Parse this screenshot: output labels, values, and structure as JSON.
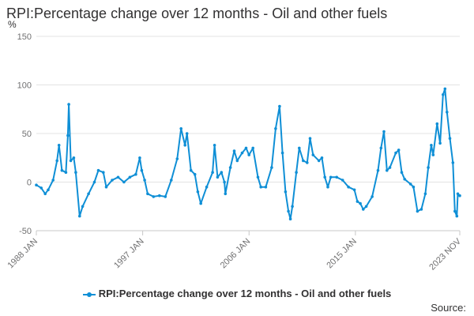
{
  "chart_data": {
    "type": "line",
    "title": "RPI:Percentage change over 12 months - Oil and other fuels",
    "unit_label": "%",
    "ylim": [
      -50,
      150
    ],
    "y_ticks": [
      -50,
      0,
      50,
      100,
      150
    ],
    "x_range": [
      "1988-01",
      "2023-11"
    ],
    "x_tick_labels": [
      {
        "date": "1988-01",
        "label": "1988 JAN"
      },
      {
        "date": "1997-01",
        "label": "1997 JAN"
      },
      {
        "date": "2006-01",
        "label": "2006 JAN"
      },
      {
        "date": "2015-01",
        "label": "2015 JAN"
      },
      {
        "date": "2023-11",
        "label": "2023 NOV"
      }
    ],
    "grid": {
      "horizontal": true,
      "vertical": false
    },
    "legend_position": "bottom",
    "series": [
      {
        "name": "RPI:Percentage change over 12 months - Oil and other fuels",
        "color": "#0f8fd6",
        "points": [
          [
            "1988-01",
            -3
          ],
          [
            "1988-06",
            -6
          ],
          [
            "1988-10",
            -12
          ],
          [
            "1989-01",
            -8
          ],
          [
            "1989-06",
            2
          ],
          [
            "1989-10",
            22
          ],
          [
            "1989-12",
            38
          ],
          [
            "1990-03",
            12
          ],
          [
            "1990-07",
            10
          ],
          [
            "1990-09",
            48
          ],
          [
            "1990-10",
            80
          ],
          [
            "1990-12",
            22
          ],
          [
            "1991-03",
            25
          ],
          [
            "1991-05",
            10
          ],
          [
            "1991-09",
            -35
          ],
          [
            "1991-12",
            -25
          ],
          [
            "1992-06",
            -12
          ],
          [
            "1992-12",
            0
          ],
          [
            "1993-04",
            12
          ],
          [
            "1993-09",
            10
          ],
          [
            "1993-12",
            -5
          ],
          [
            "1994-06",
            2
          ],
          [
            "1994-12",
            5
          ],
          [
            "1995-06",
            0
          ],
          [
            "1995-12",
            5
          ],
          [
            "1996-06",
            8
          ],
          [
            "1996-10",
            25
          ],
          [
            "1996-12",
            12
          ],
          [
            "1997-03",
            2
          ],
          [
            "1997-06",
            -12
          ],
          [
            "1997-12",
            -15
          ],
          [
            "1998-06",
            -14
          ],
          [
            "1998-12",
            -15
          ],
          [
            "1999-06",
            2
          ],
          [
            "1999-12",
            24
          ],
          [
            "2000-04",
            55
          ],
          [
            "2000-08",
            38
          ],
          [
            "2000-10",
            50
          ],
          [
            "2001-02",
            12
          ],
          [
            "2001-06",
            8
          ],
          [
            "2001-09",
            -10
          ],
          [
            "2001-12",
            -22
          ],
          [
            "2002-06",
            -5
          ],
          [
            "2002-12",
            10
          ],
          [
            "2003-02",
            38
          ],
          [
            "2003-05",
            5
          ],
          [
            "2003-09",
            10
          ],
          [
            "2003-12",
            0
          ],
          [
            "2004-01",
            -12
          ],
          [
            "2004-06",
            15
          ],
          [
            "2004-10",
            32
          ],
          [
            "2005-01",
            22
          ],
          [
            "2005-06",
            30
          ],
          [
            "2005-10",
            35
          ],
          [
            "2006-01",
            28
          ],
          [
            "2006-05",
            35
          ],
          [
            "2006-10",
            5
          ],
          [
            "2007-01",
            -5
          ],
          [
            "2007-06",
            -5
          ],
          [
            "2007-12",
            15
          ],
          [
            "2008-04",
            55
          ],
          [
            "2008-08",
            78
          ],
          [
            "2008-11",
            30
          ],
          [
            "2009-02",
            -10
          ],
          [
            "2009-05",
            -30
          ],
          [
            "2009-07",
            -38
          ],
          [
            "2009-09",
            -25
          ],
          [
            "2010-01",
            10
          ],
          [
            "2010-04",
            35
          ],
          [
            "2010-08",
            22
          ],
          [
            "2010-12",
            20
          ],
          [
            "2011-03",
            45
          ],
          [
            "2011-06",
            28
          ],
          [
            "2011-12",
            22
          ],
          [
            "2012-03",
            25
          ],
          [
            "2012-06",
            5
          ],
          [
            "2012-09",
            -5
          ],
          [
            "2012-12",
            5
          ],
          [
            "2013-06",
            5
          ],
          [
            "2013-12",
            2
          ],
          [
            "2014-06",
            -5
          ],
          [
            "2014-12",
            -8
          ],
          [
            "2015-03",
            -20
          ],
          [
            "2015-06",
            -22
          ],
          [
            "2015-09",
            -28
          ],
          [
            "2015-12",
            -25
          ],
          [
            "2016-06",
            -15
          ],
          [
            "2016-12",
            12
          ],
          [
            "2017-03",
            35
          ],
          [
            "2017-06",
            52
          ],
          [
            "2017-09",
            12
          ],
          [
            "2017-12",
            15
          ],
          [
            "2018-06",
            30
          ],
          [
            "2018-09",
            33
          ],
          [
            "2018-12",
            10
          ],
          [
            "2019-03",
            3
          ],
          [
            "2019-09",
            -2
          ],
          [
            "2019-12",
            -5
          ],
          [
            "2020-04",
            -30
          ],
          [
            "2020-08",
            -28
          ],
          [
            "2020-12",
            -12
          ],
          [
            "2021-03",
            15
          ],
          [
            "2021-06",
            38
          ],
          [
            "2021-08",
            28
          ],
          [
            "2021-12",
            60
          ],
          [
            "2022-03",
            40
          ],
          [
            "2022-06",
            90
          ],
          [
            "2022-08",
            96
          ],
          [
            "2022-10",
            72
          ],
          [
            "2023-01",
            45
          ],
          [
            "2023-04",
            20
          ],
          [
            "2023-06",
            -30
          ],
          [
            "2023-08",
            -35
          ],
          [
            "2023-09",
            -12
          ],
          [
            "2023-11",
            -14
          ]
        ]
      }
    ]
  },
  "source_label": "Source:"
}
